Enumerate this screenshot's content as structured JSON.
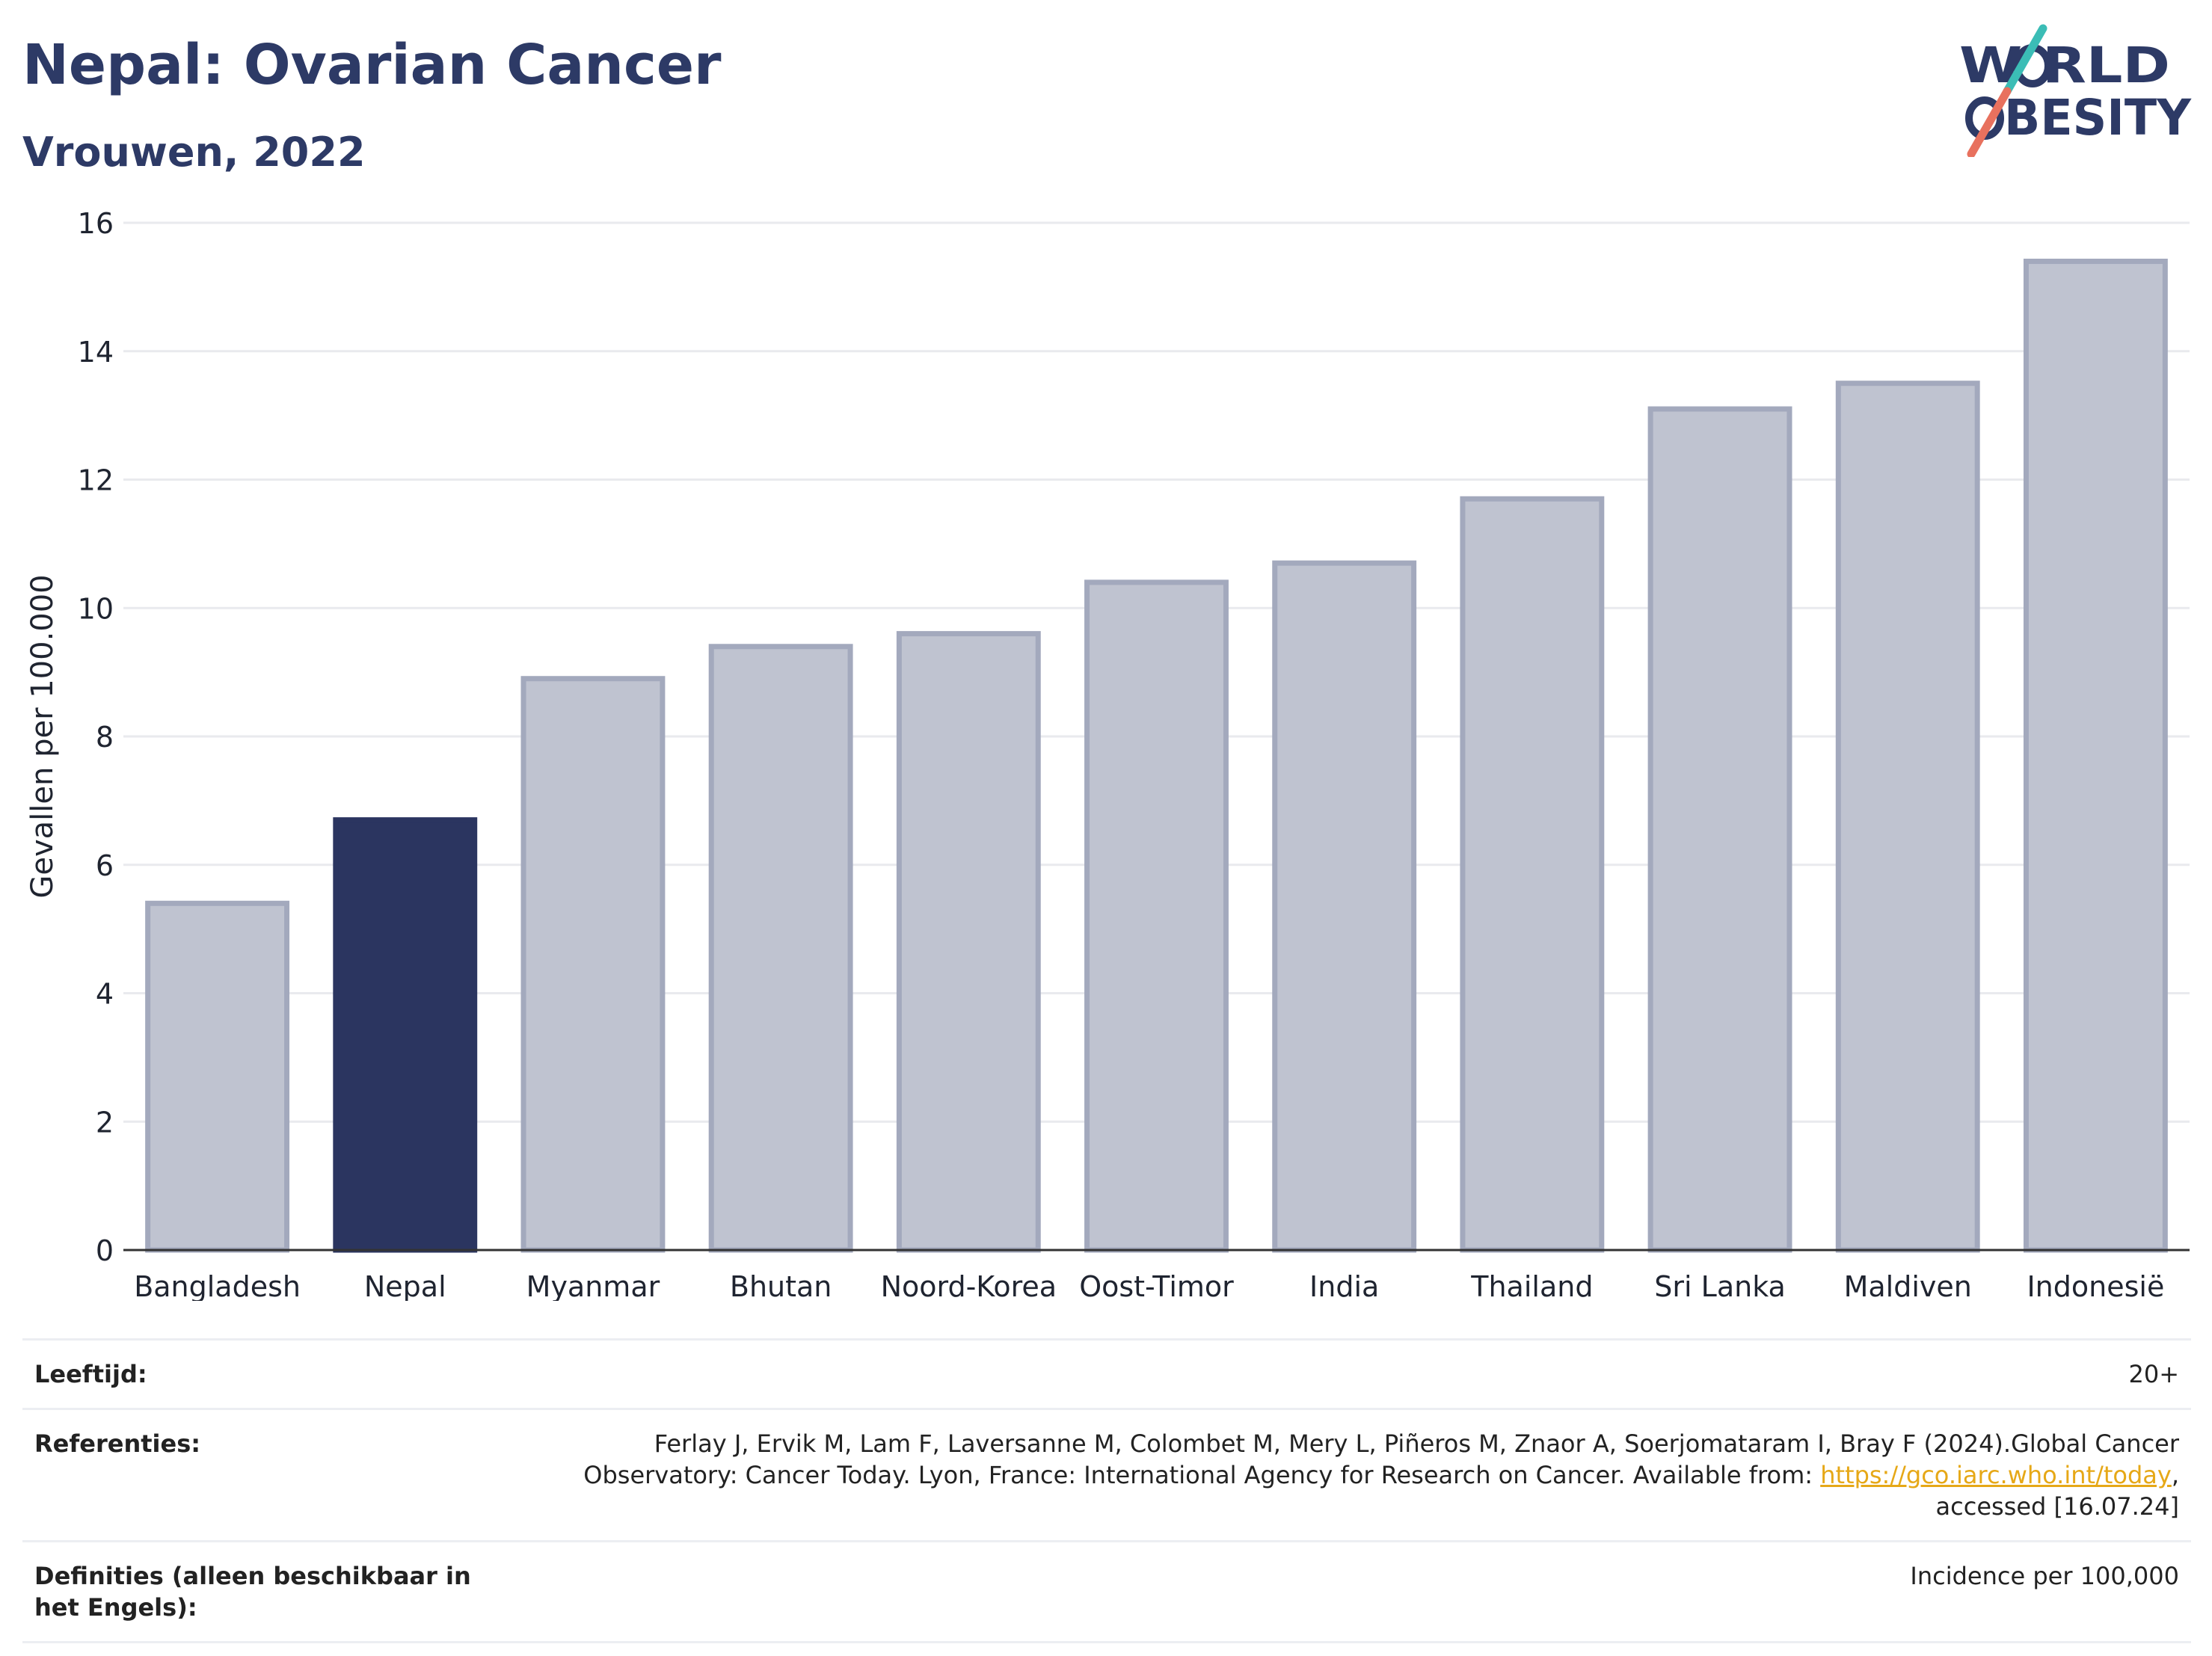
{
  "header": {
    "title": "Nepal: Ovarian Cancer",
    "subtitle": "Vrouwen, 2022"
  },
  "logo": {
    "line1": "W RLD",
    "line2": "BESITY",
    "text": "WORLD OBESITY",
    "colors": {
      "text": "#2d3a66",
      "slash_teal": "#3bbdb6",
      "slash_coral": "#e8715e"
    }
  },
  "chart_data": {
    "type": "bar",
    "categories": [
      "Bangladesh",
      "Nepal",
      "Myanmar",
      "Bhutan",
      "Noord-Korea",
      "Oost-Timor",
      "India",
      "Thailand",
      "Sri Lanka",
      "Maldiven",
      "Indonesië"
    ],
    "values": [
      5.4,
      6.7,
      8.9,
      9.4,
      9.6,
      10.4,
      10.7,
      11.7,
      13.1,
      13.5,
      15.4
    ],
    "highlight": "Nepal",
    "ylabel": "Gevallen per 100.000",
    "xlabel": "",
    "ylim": [
      0,
      16
    ],
    "yticks": [
      0,
      2,
      4,
      6,
      8,
      10,
      12,
      14,
      16
    ],
    "grid": true,
    "legend": "none",
    "colors": {
      "highlight": "#2b3560",
      "bar_fill": "#bfc3d0",
      "bar_edge": "#a3a9bd"
    }
  },
  "footer": {
    "age_label": "Leeftijd:",
    "age_value": "20+",
    "ref_label": "Referenties:",
    "ref_text_pre": "Ferlay J, Ervik M, Lam F, Laversanne M, Colombet M, Mery L, Piñeros M, Znaor A, Soerjomataram I, Bray F (2024).Global Cancer Observatory: Cancer Today. Lyon, France: International Agency for Research on Cancer. Available from: ",
    "ref_link": "https://gco.iarc.who.int/today",
    "ref_text_post": ", accessed [16.07.24]",
    "def_label": "Definities (alleen beschikbaar in het Engels):",
    "def_value": "Incidence per 100,000"
  }
}
